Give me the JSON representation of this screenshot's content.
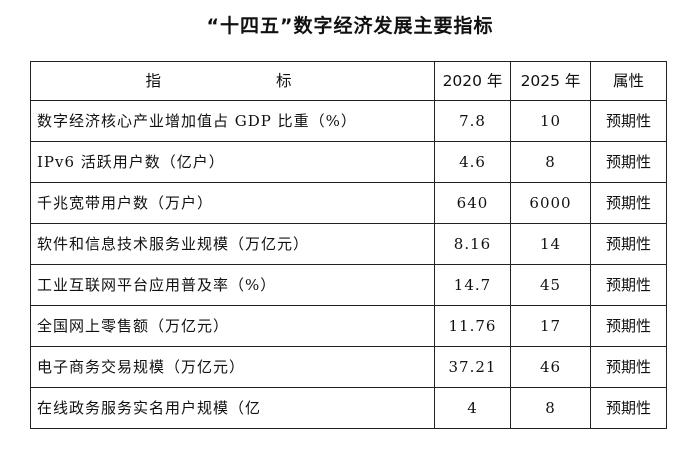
{
  "title": "“十四五”数字经济发展主要指标",
  "table": {
    "headers": {
      "indicator": "指　　标",
      "year_2020": "2020 年",
      "year_2025": "2025 年",
      "attribute": "属性"
    },
    "rows": [
      {
        "indicator": "数字经济核心产业增加值占 GDP 比重（%）",
        "v2020": "7.8",
        "v2025": "10",
        "attribute": "预期性"
      },
      {
        "indicator": "IPv6 活跃用户数（亿户）",
        "v2020": "4.6",
        "v2025": "8",
        "attribute": "预期性"
      },
      {
        "indicator": "千兆宽带用户数（万户）",
        "v2020": "640",
        "v2025": "6000",
        "attribute": "预期性"
      },
      {
        "indicator": "软件和信息技术服务业规模（万亿元）",
        "v2020": "8.16",
        "v2025": "14",
        "attribute": "预期性"
      },
      {
        "indicator": "工业互联网平台应用普及率（%）",
        "v2020": "14.7",
        "v2025": "45",
        "attribute": "预期性"
      },
      {
        "indicator": "全国网上零售额（万亿元）",
        "v2020": "11.76",
        "v2025": "17",
        "attribute": "预期性"
      },
      {
        "indicator": "电子商务交易规模（万亿元）",
        "v2020": "37.21",
        "v2025": "46",
        "attribute": "预期性"
      },
      {
        "indicator": "在线政务服务实名用户规模（亿",
        "v2020": "4",
        "v2025": "8",
        "attribute": "预期性"
      }
    ]
  }
}
